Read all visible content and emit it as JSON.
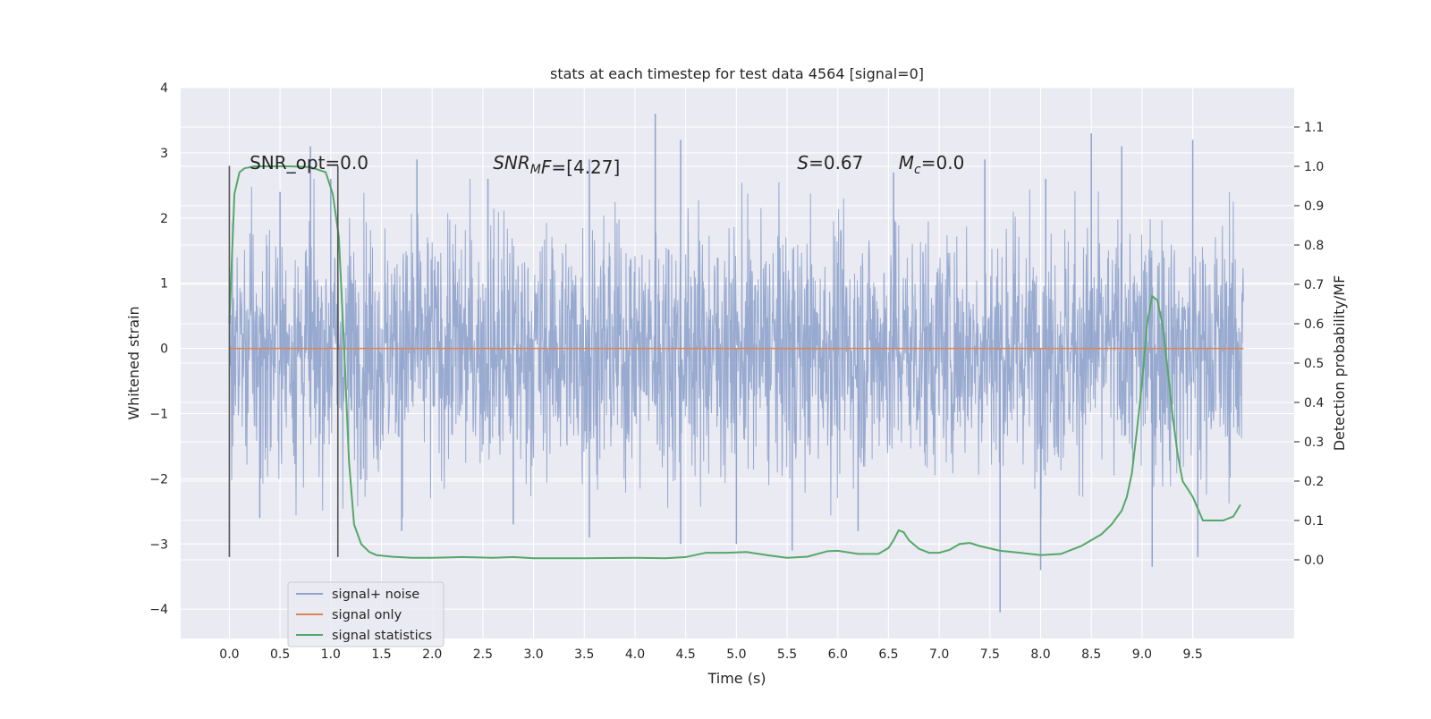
{
  "chart_data": {
    "type": "line",
    "title": "stats at each timestep for test data 4564 [signal=0]",
    "xlabel": "Time (s)",
    "ylabel_left": "Whitened strain",
    "ylabel_right": "Detection probability/MF",
    "xlim": [
      -0.48,
      10.5
    ],
    "ylim_left": [
      -4.45,
      4.0
    ],
    "ylim_right": [
      -0.2,
      1.2
    ],
    "xticks": [
      0.0,
      0.5,
      1.0,
      1.5,
      2.0,
      2.5,
      3.0,
      3.5,
      4.0,
      4.5,
      5.0,
      5.5,
      6.0,
      6.5,
      7.0,
      7.5,
      8.0,
      8.5,
      9.0,
      9.5
    ],
    "xtick_labels": [
      "0.0",
      "0.5",
      "1.0",
      "1.5",
      "2.0",
      "2.5",
      "3.0",
      "3.5",
      "4.0",
      "4.5",
      "5.0",
      "5.5",
      "6.0",
      "6.5",
      "7.0",
      "7.5",
      "8.0",
      "8.5",
      "9.0",
      "9.5"
    ],
    "yticks_left": [
      -4,
      -3,
      -2,
      -1,
      0,
      1,
      2,
      3,
      4
    ],
    "ytick_labels_left": [
      "−4",
      "−3",
      "−2",
      "−1",
      "0",
      "1",
      "2",
      "3",
      "4"
    ],
    "yticks_right": [
      0.0,
      0.1,
      0.2,
      0.3,
      0.4,
      0.5,
      0.6,
      0.7,
      0.8,
      0.9,
      1.0,
      1.1
    ],
    "ytick_labels_right": [
      "0.0",
      "0.1",
      "0.2",
      "0.3",
      "0.4",
      "0.5",
      "0.6",
      "0.7",
      "0.8",
      "0.9",
      "1.0",
      "1.1"
    ],
    "grid": true,
    "legend_position": "lower-left",
    "colors": {
      "background": "#eaeaf2",
      "grid": "#ffffff",
      "noise": "#8fa3cc",
      "signal_only": "#dd8452",
      "statistics": "#55a868",
      "vline": "#555555"
    },
    "series": [
      {
        "name": "signal+ noise",
        "kind": "dense-noise",
        "x_range": [
          0.0,
          10.0
        ],
        "band_approx": [
          -1.5,
          1.6
        ],
        "peaks_max": [
          [
            0.5,
            2.4
          ],
          [
            0.8,
            3.1
          ],
          [
            1.0,
            2.6
          ],
          [
            1.85,
            2.9
          ],
          [
            2.55,
            2.6
          ],
          [
            3.55,
            2.9
          ],
          [
            4.2,
            3.6
          ],
          [
            4.45,
            3.2
          ],
          [
            6.55,
            2.7
          ],
          [
            7.45,
            2.9
          ],
          [
            8.05,
            2.6
          ],
          [
            8.5,
            3.3
          ],
          [
            8.8,
            3.1
          ],
          [
            9.5,
            3.2
          ]
        ],
        "peaks_min": [
          [
            0.3,
            -2.6
          ],
          [
            1.7,
            -2.8
          ],
          [
            2.8,
            -2.7
          ],
          [
            3.55,
            -2.9
          ],
          [
            4.45,
            -3.0
          ],
          [
            5.0,
            -3.0
          ],
          [
            5.55,
            -3.1
          ],
          [
            6.2,
            -2.8
          ],
          [
            7.6,
            -4.05
          ],
          [
            8.0,
            -3.4
          ],
          [
            9.1,
            -3.35
          ],
          [
            9.55,
            -3.2
          ]
        ]
      },
      {
        "name": "signal only",
        "kind": "line",
        "x": [
          0.0,
          10.0
        ],
        "y": [
          0.0,
          0.0
        ]
      },
      {
        "name": "signal statistics",
        "kind": "line",
        "axis": "right",
        "x": [
          0.0,
          0.05,
          0.1,
          0.15,
          0.25,
          0.4,
          0.6,
          0.8,
          0.95,
          1.02,
          1.08,
          1.13,
          1.18,
          1.23,
          1.3,
          1.38,
          1.45,
          1.6,
          1.8,
          2.0,
          2.3,
          2.6,
          2.8,
          3.0,
          3.5,
          4.0,
          4.3,
          4.5,
          4.7,
          4.9,
          5.1,
          5.3,
          5.5,
          5.7,
          5.9,
          6.0,
          6.2,
          6.4,
          6.5,
          6.55,
          6.6,
          6.65,
          6.7,
          6.8,
          6.9,
          7.0,
          7.1,
          7.2,
          7.3,
          7.4,
          7.6,
          7.8,
          8.0,
          8.2,
          8.4,
          8.6,
          8.7,
          8.8,
          8.85,
          8.9,
          8.95,
          9.0,
          9.05,
          9.1,
          9.15,
          9.2,
          9.25,
          9.3,
          9.35,
          9.4,
          9.5,
          9.6,
          9.7,
          9.8,
          9.9,
          9.97
        ],
        "y": [
          0.6,
          0.93,
          0.985,
          0.995,
          1.0,
          1.0,
          1.0,
          0.998,
          0.985,
          0.93,
          0.82,
          0.55,
          0.25,
          0.09,
          0.04,
          0.02,
          0.012,
          0.008,
          0.005,
          0.005,
          0.007,
          0.005,
          0.007,
          0.004,
          0.004,
          0.005,
          0.004,
          0.007,
          0.018,
          0.018,
          0.02,
          0.012,
          0.005,
          0.008,
          0.022,
          0.023,
          0.015,
          0.015,
          0.03,
          0.05,
          0.075,
          0.07,
          0.05,
          0.028,
          0.018,
          0.018,
          0.025,
          0.04,
          0.043,
          0.035,
          0.023,
          0.018,
          0.012,
          0.015,
          0.035,
          0.065,
          0.09,
          0.125,
          0.16,
          0.22,
          0.33,
          0.45,
          0.6,
          0.67,
          0.66,
          0.6,
          0.49,
          0.37,
          0.27,
          0.2,
          0.16,
          0.1,
          0.1,
          0.1,
          0.11,
          0.14
        ]
      }
    ],
    "vlines": [
      {
        "x": 0.0,
        "y_range": [
          -3.2,
          2.8
        ]
      },
      {
        "x": 1.07,
        "y_range": [
          -3.2,
          2.8
        ]
      }
    ],
    "annotations": [
      {
        "text": "SNR_opt=0.0",
        "x": 0.2,
        "y": 2.75
      },
      {
        "text": "SNR",
        "sub": "M",
        "rest": "F=[4.27]",
        "italic_prefix": true,
        "x": 2.6,
        "y": 2.75
      },
      {
        "text": "S",
        "rest": "=0.67",
        "italic_prefix": true,
        "x": 5.6,
        "y": 2.75
      },
      {
        "text": "M",
        "sub": "c",
        "rest": "=0.0",
        "italic_prefix": true,
        "x": 6.6,
        "y": 2.75
      }
    ]
  }
}
